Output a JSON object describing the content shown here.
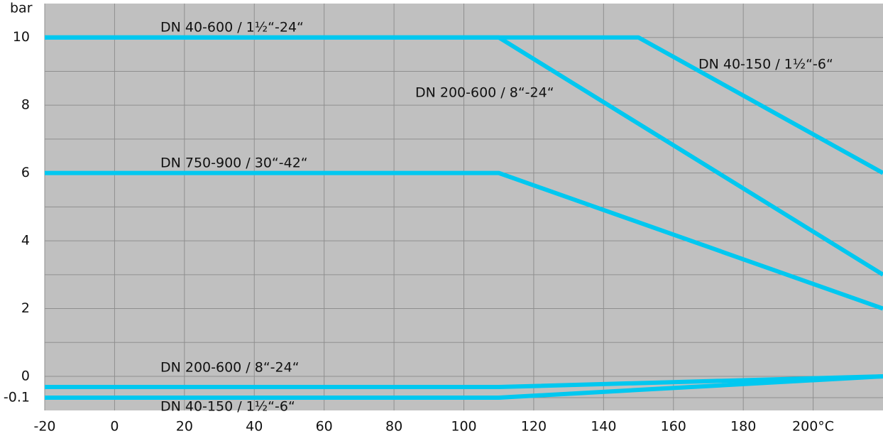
{
  "chart_data": {
    "type": "line",
    "y_label": "bar",
    "annotation": "DN 40-600 / 1½“-24“",
    "xlim": [
      -20,
      220
    ],
    "ylim": [
      -0.16,
      11
    ],
    "xticks": [
      -20,
      0,
      20,
      40,
      60,
      80,
      100,
      120,
      140,
      160,
      180,
      {
        "value": 200,
        "label": "200°C"
      }
    ],
    "yticks": [
      -0.1,
      0,
      2,
      4,
      6,
      8,
      10
    ],
    "minor_yticks": [
      1,
      3,
      5,
      7,
      9
    ],
    "grid": true,
    "series": [
      {
        "name": "DN 40-150 / 1½“-6“",
        "color": "#00c8f0",
        "x": [
          -20,
          150,
          220
        ],
        "values": [
          10,
          10,
          6
        ]
      },
      {
        "name": "DN 200-600 / 8“-24“",
        "color": "#00c8f0",
        "x": [
          -20,
          110,
          220
        ],
        "values": [
          10,
          10,
          3
        ]
      },
      {
        "name": "DN 750-900 / 30“-42“",
        "color": "#00c8f0",
        "x": [
          -20,
          110,
          220
        ],
        "values": [
          6,
          6,
          2
        ]
      },
      {
        "name": "DN 200-600 / 8“-24“",
        "color": "#00c8f0",
        "x": [
          -20,
          110,
          220
        ],
        "values": [
          -0.05,
          -0.05,
          0
        ]
      },
      {
        "name": "DN 40-150 / 1½“-6“",
        "color": "#00c8f0",
        "x": [
          -20,
          110,
          220
        ],
        "values": [
          -0.1,
          -0.1,
          0
        ]
      }
    ]
  }
}
